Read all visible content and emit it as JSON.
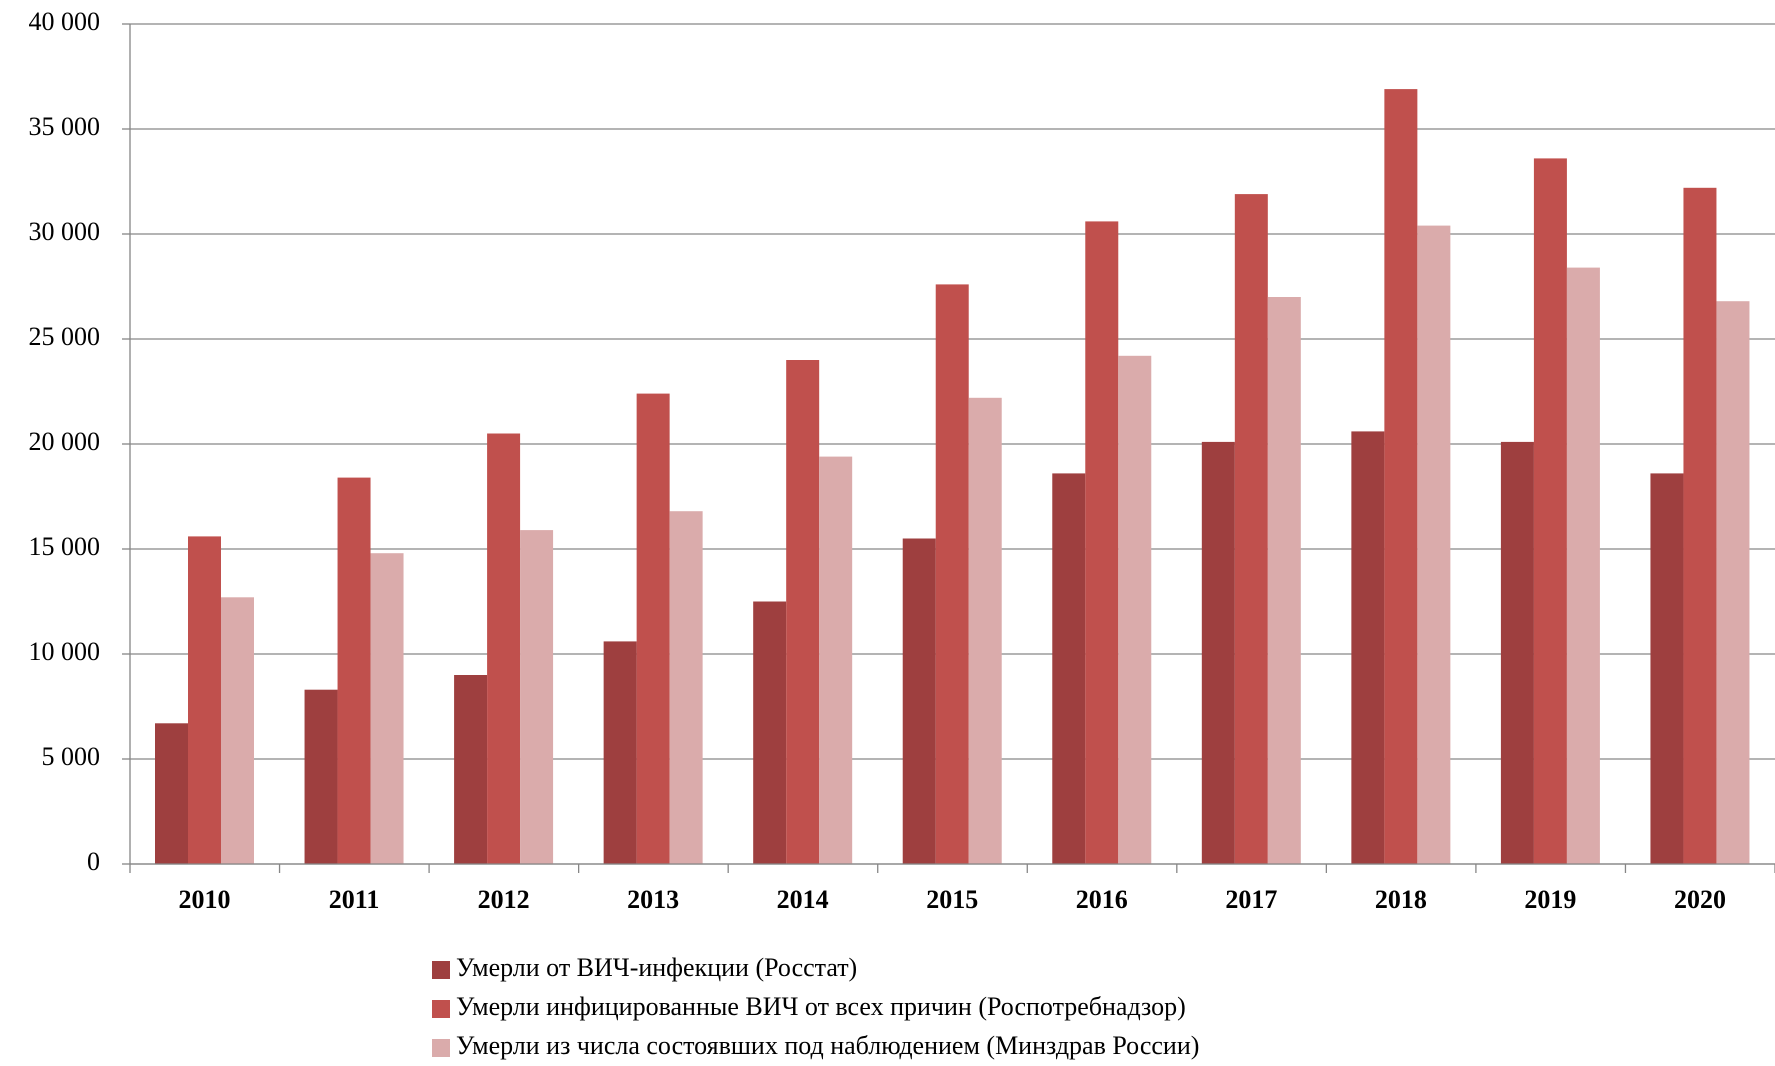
{
  "chart_data": {
    "type": "bar",
    "categories": [
      "2010",
      "2011",
      "2012",
      "2013",
      "2014",
      "2015",
      "2016",
      "2017",
      "2018",
      "2019",
      "2020"
    ],
    "series": [
      {
        "name": "Умерли от ВИЧ-инфекции (Росстат)",
        "color": "#9e3f3f",
        "values": [
          6700,
          8300,
          9000,
          10600,
          12500,
          15500,
          18600,
          20100,
          20600,
          20100,
          18600
        ]
      },
      {
        "name": "Умерли инфицированные ВИЧ от всех причин (Роспотребнадзор)",
        "color": "#c0504d",
        "values": [
          15600,
          18400,
          20500,
          22400,
          24000,
          27600,
          30600,
          31900,
          36900,
          33600,
          32200
        ]
      },
      {
        "name": "Умерли из числа состоявших под наблюдением (Минздрав России)",
        "color": "#daabab",
        "values": [
          12700,
          14800,
          15900,
          16800,
          19400,
          22200,
          24200,
          27000,
          30400,
          28400,
          26800
        ]
      }
    ],
    "ylim": [
      0,
      40000
    ],
    "yticks": [
      0,
      {
        "value": 5000,
        "label": "5 000"
      },
      {
        "value": 10000,
        "label": "10 000"
      },
      {
        "value": 15000,
        "label": "15 000"
      },
      {
        "value": 20000,
        "label": "20 000"
      },
      {
        "value": 25000,
        "label": "25 000"
      },
      {
        "value": 30000,
        "label": "30 000"
      },
      {
        "value": 35000,
        "label": "35 000"
      },
      {
        "value": 40000,
        "label": "40 000"
      }
    ],
    "grid": true,
    "legend": "bottom"
  }
}
